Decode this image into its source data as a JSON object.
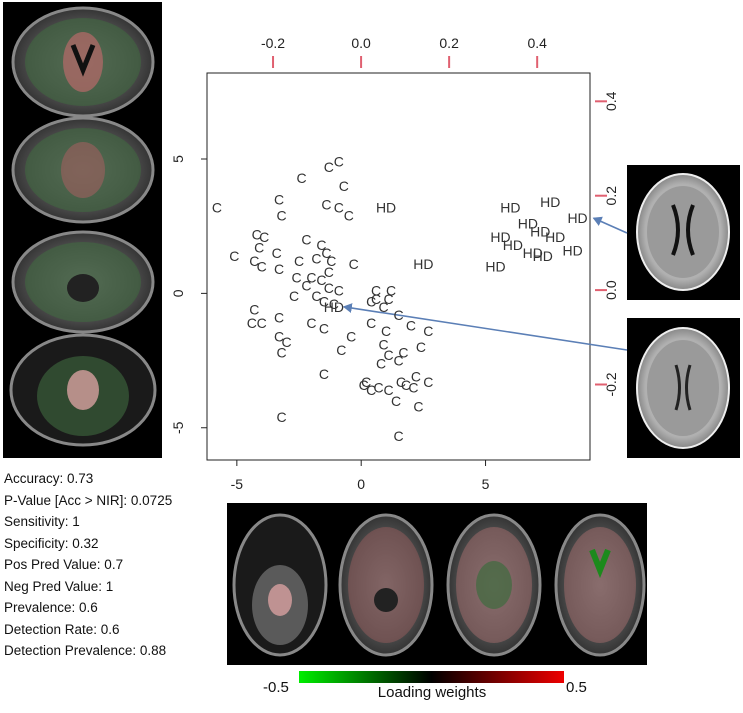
{
  "chart_data": {
    "type": "scatter",
    "title": "",
    "xlabel": "",
    "ylabel": "",
    "xlim": [
      -6.2,
      9.2
    ],
    "ylim": [
      -6.2,
      8.2
    ],
    "x_ticks": [
      -5,
      0,
      5
    ],
    "y_ticks": [
      -5,
      0,
      5
    ],
    "top_axis_ticks": [
      -0.2,
      0.0,
      0.2,
      0.4
    ],
    "top_axis_range": [
      -0.35,
      0.52
    ],
    "right_axis_ticks": [
      -0.2,
      0.0,
      0.2,
      0.4
    ],
    "right_axis_range": [
      -0.36,
      0.46
    ],
    "grid": false,
    "series": [
      {
        "marker": "C",
        "color": "#333333",
        "points": [
          [
            -5.8,
            3.2
          ],
          [
            -1.3,
            4.7
          ],
          [
            -0.9,
            4.9
          ],
          [
            -2.4,
            4.3
          ],
          [
            -0.7,
            4.0
          ],
          [
            -3.3,
            3.5
          ],
          [
            -1.4,
            3.3
          ],
          [
            -0.9,
            3.2
          ],
          [
            -3.2,
            2.9
          ],
          [
            -0.5,
            2.9
          ],
          [
            -4.2,
            2.2
          ],
          [
            -3.9,
            2.1
          ],
          [
            -2.2,
            2.0
          ],
          [
            -1.6,
            1.8
          ],
          [
            -4.1,
            1.7
          ],
          [
            -3.4,
            1.5
          ],
          [
            -1.4,
            1.5
          ],
          [
            -1.8,
            1.3
          ],
          [
            -1.2,
            1.2
          ],
          [
            -5.1,
            1.4
          ],
          [
            -4.3,
            1.2
          ],
          [
            -2.5,
            1.2
          ],
          [
            -0.3,
            1.1
          ],
          [
            -4.0,
            1.0
          ],
          [
            -3.3,
            0.9
          ],
          [
            -1.3,
            0.8
          ],
          [
            -2.6,
            0.6
          ],
          [
            -2.0,
            0.6
          ],
          [
            -1.6,
            0.5
          ],
          [
            -2.2,
            0.3
          ],
          [
            -1.3,
            0.2
          ],
          [
            -0.9,
            0.1
          ],
          [
            -1.8,
            -0.1
          ],
          [
            -2.7,
            -0.1
          ],
          [
            -1.5,
            -0.3
          ],
          [
            -1.1,
            -0.4
          ],
          [
            0.4,
            -0.3
          ],
          [
            1.1,
            -0.2
          ],
          [
            -4.3,
            -0.6
          ],
          [
            -3.3,
            -0.9
          ],
          [
            -4.4,
            -1.1
          ],
          [
            -4.0,
            -1.1
          ],
          [
            -2.0,
            -1.1
          ],
          [
            -1.5,
            -1.3
          ],
          [
            -0.4,
            -1.6
          ],
          [
            -3.3,
            -1.6
          ],
          [
            -3.0,
            -1.8
          ],
          [
            -3.2,
            -2.2
          ],
          [
            0.9,
            -1.9
          ],
          [
            1.7,
            -2.2
          ],
          [
            1.1,
            -2.3
          ],
          [
            1.5,
            -2.5
          ],
          [
            -1.5,
            -3.0
          ],
          [
            0.2,
            -3.3
          ],
          [
            1.6,
            -3.3
          ],
          [
            0.7,
            -3.5
          ],
          [
            2.1,
            -3.5
          ],
          [
            0.4,
            -3.6
          ],
          [
            1.4,
            -4.0
          ],
          [
            2.3,
            -4.2
          ],
          [
            -3.2,
            -4.6
          ],
          [
            1.5,
            -5.3
          ],
          [
            0.6,
            0.1
          ],
          [
            1.2,
            0.1
          ],
          [
            0.9,
            -0.5
          ],
          [
            1.5,
            -0.8
          ],
          [
            0.4,
            -1.1
          ],
          [
            1.0,
            -1.4
          ],
          [
            2.0,
            -1.2
          ],
          [
            2.7,
            -1.4
          ],
          [
            0.6,
            -0.2
          ],
          [
            2.4,
            -2.0
          ],
          [
            -0.8,
            -2.1
          ],
          [
            0.8,
            -2.6
          ],
          [
            2.2,
            -3.1
          ],
          [
            1.8,
            -3.4
          ],
          [
            2.7,
            -3.3
          ],
          [
            1.1,
            -3.6
          ],
          [
            0.1,
            -3.4
          ]
        ]
      },
      {
        "marker": "HD",
        "color": "#333333",
        "points": [
          [
            1.0,
            3.2
          ],
          [
            6.0,
            3.2
          ],
          [
            7.6,
            3.4
          ],
          [
            8.7,
            2.8
          ],
          [
            6.7,
            2.6
          ],
          [
            7.2,
            2.3
          ],
          [
            5.6,
            2.1
          ],
          [
            7.8,
            2.1
          ],
          [
            6.1,
            1.8
          ],
          [
            8.5,
            1.6
          ],
          [
            6.9,
            1.5
          ],
          [
            7.3,
            1.4
          ],
          [
            2.5,
            1.1
          ],
          [
            5.4,
            1.0
          ],
          [
            -1.1,
            -0.5
          ]
        ]
      }
    ],
    "annotations": [
      {
        "type": "arrow",
        "color": "#5b7fb6",
        "from": "upper-right-brain-image",
        "to_point": [
          8.7,
          2.8
        ]
      },
      {
        "type": "arrow",
        "color": "#5b7fb6",
        "from": "lower-right-brain-image",
        "to_point": [
          -1.1,
          -0.5
        ]
      }
    ]
  },
  "stats": [
    "Accuracy: 0.73",
    "P-Value [Acc > NIR]: 0.0725",
    "Sensitivity: 1",
    "Specificity: 0.32",
    "Pos Pred Value: 0.7",
    "Neg Pred Value: 1",
    "Prevalence: 0.6",
    "Detection Rate: 0.6",
    "Detection Prevalence: 0.88"
  ],
  "colorbar": {
    "min_label": "-0.5",
    "max_label": "0.5",
    "label": "Loading weights",
    "colors": [
      "#00ee00",
      "#000000",
      "#ee0000"
    ]
  }
}
